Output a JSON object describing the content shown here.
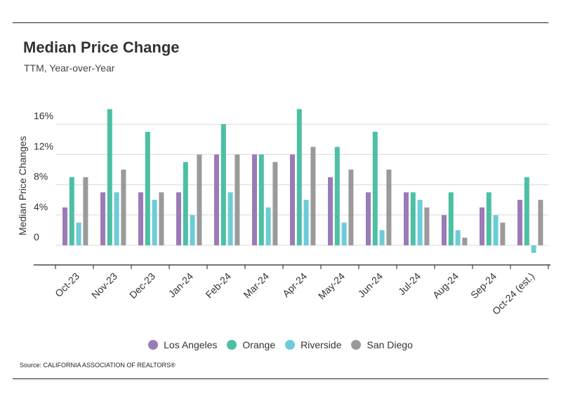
{
  "header": {
    "title": "Median Price Change",
    "subtitle": "TTM, Year-over-Year"
  },
  "source": "Source:  CALIFORNIA ASSOCIATION OF REALTORS®",
  "colors": {
    "Los Angeles": "#9b7ab8",
    "Orange": "#4cbfa4",
    "Riverside": "#6cccd8",
    "San Diego": "#9a9a9a"
  },
  "chart_data": {
    "type": "bar",
    "ylabel": "Median Price Changes",
    "xlabel": "",
    "ylim": [
      -2,
      18
    ],
    "yticks": [
      0,
      4,
      8,
      12,
      16
    ],
    "ytick_labels": [
      "0",
      "4%",
      "8%",
      "12%",
      "16%"
    ],
    "grid": true,
    "legend_position": "bottom",
    "categories": [
      "Oct-23",
      "Nov-23",
      "Dec-23",
      "Jan-24",
      "Feb-24",
      "Mar-24",
      "Apr-24",
      "May-24",
      "Jun-24",
      "Jul-24",
      "Aug-24",
      "Sep-24",
      "Oct-24 (est.)"
    ],
    "series": [
      {
        "name": "Los Angeles",
        "values": [
          5,
          7,
          7,
          7,
          12,
          12,
          12,
          9,
          7,
          7,
          4,
          5,
          6
        ]
      },
      {
        "name": "Orange",
        "values": [
          9,
          18,
          15,
          11,
          16,
          12,
          18,
          13,
          15,
          7,
          7,
          7,
          9
        ]
      },
      {
        "name": "Riverside",
        "values": [
          3,
          7,
          6,
          4,
          7,
          5,
          6,
          3,
          2,
          6,
          2,
          4,
          -1
        ]
      },
      {
        "name": "San Diego",
        "values": [
          9,
          10,
          7,
          12,
          12,
          11,
          13,
          10,
          10,
          5,
          1,
          3,
          6
        ]
      }
    ]
  }
}
